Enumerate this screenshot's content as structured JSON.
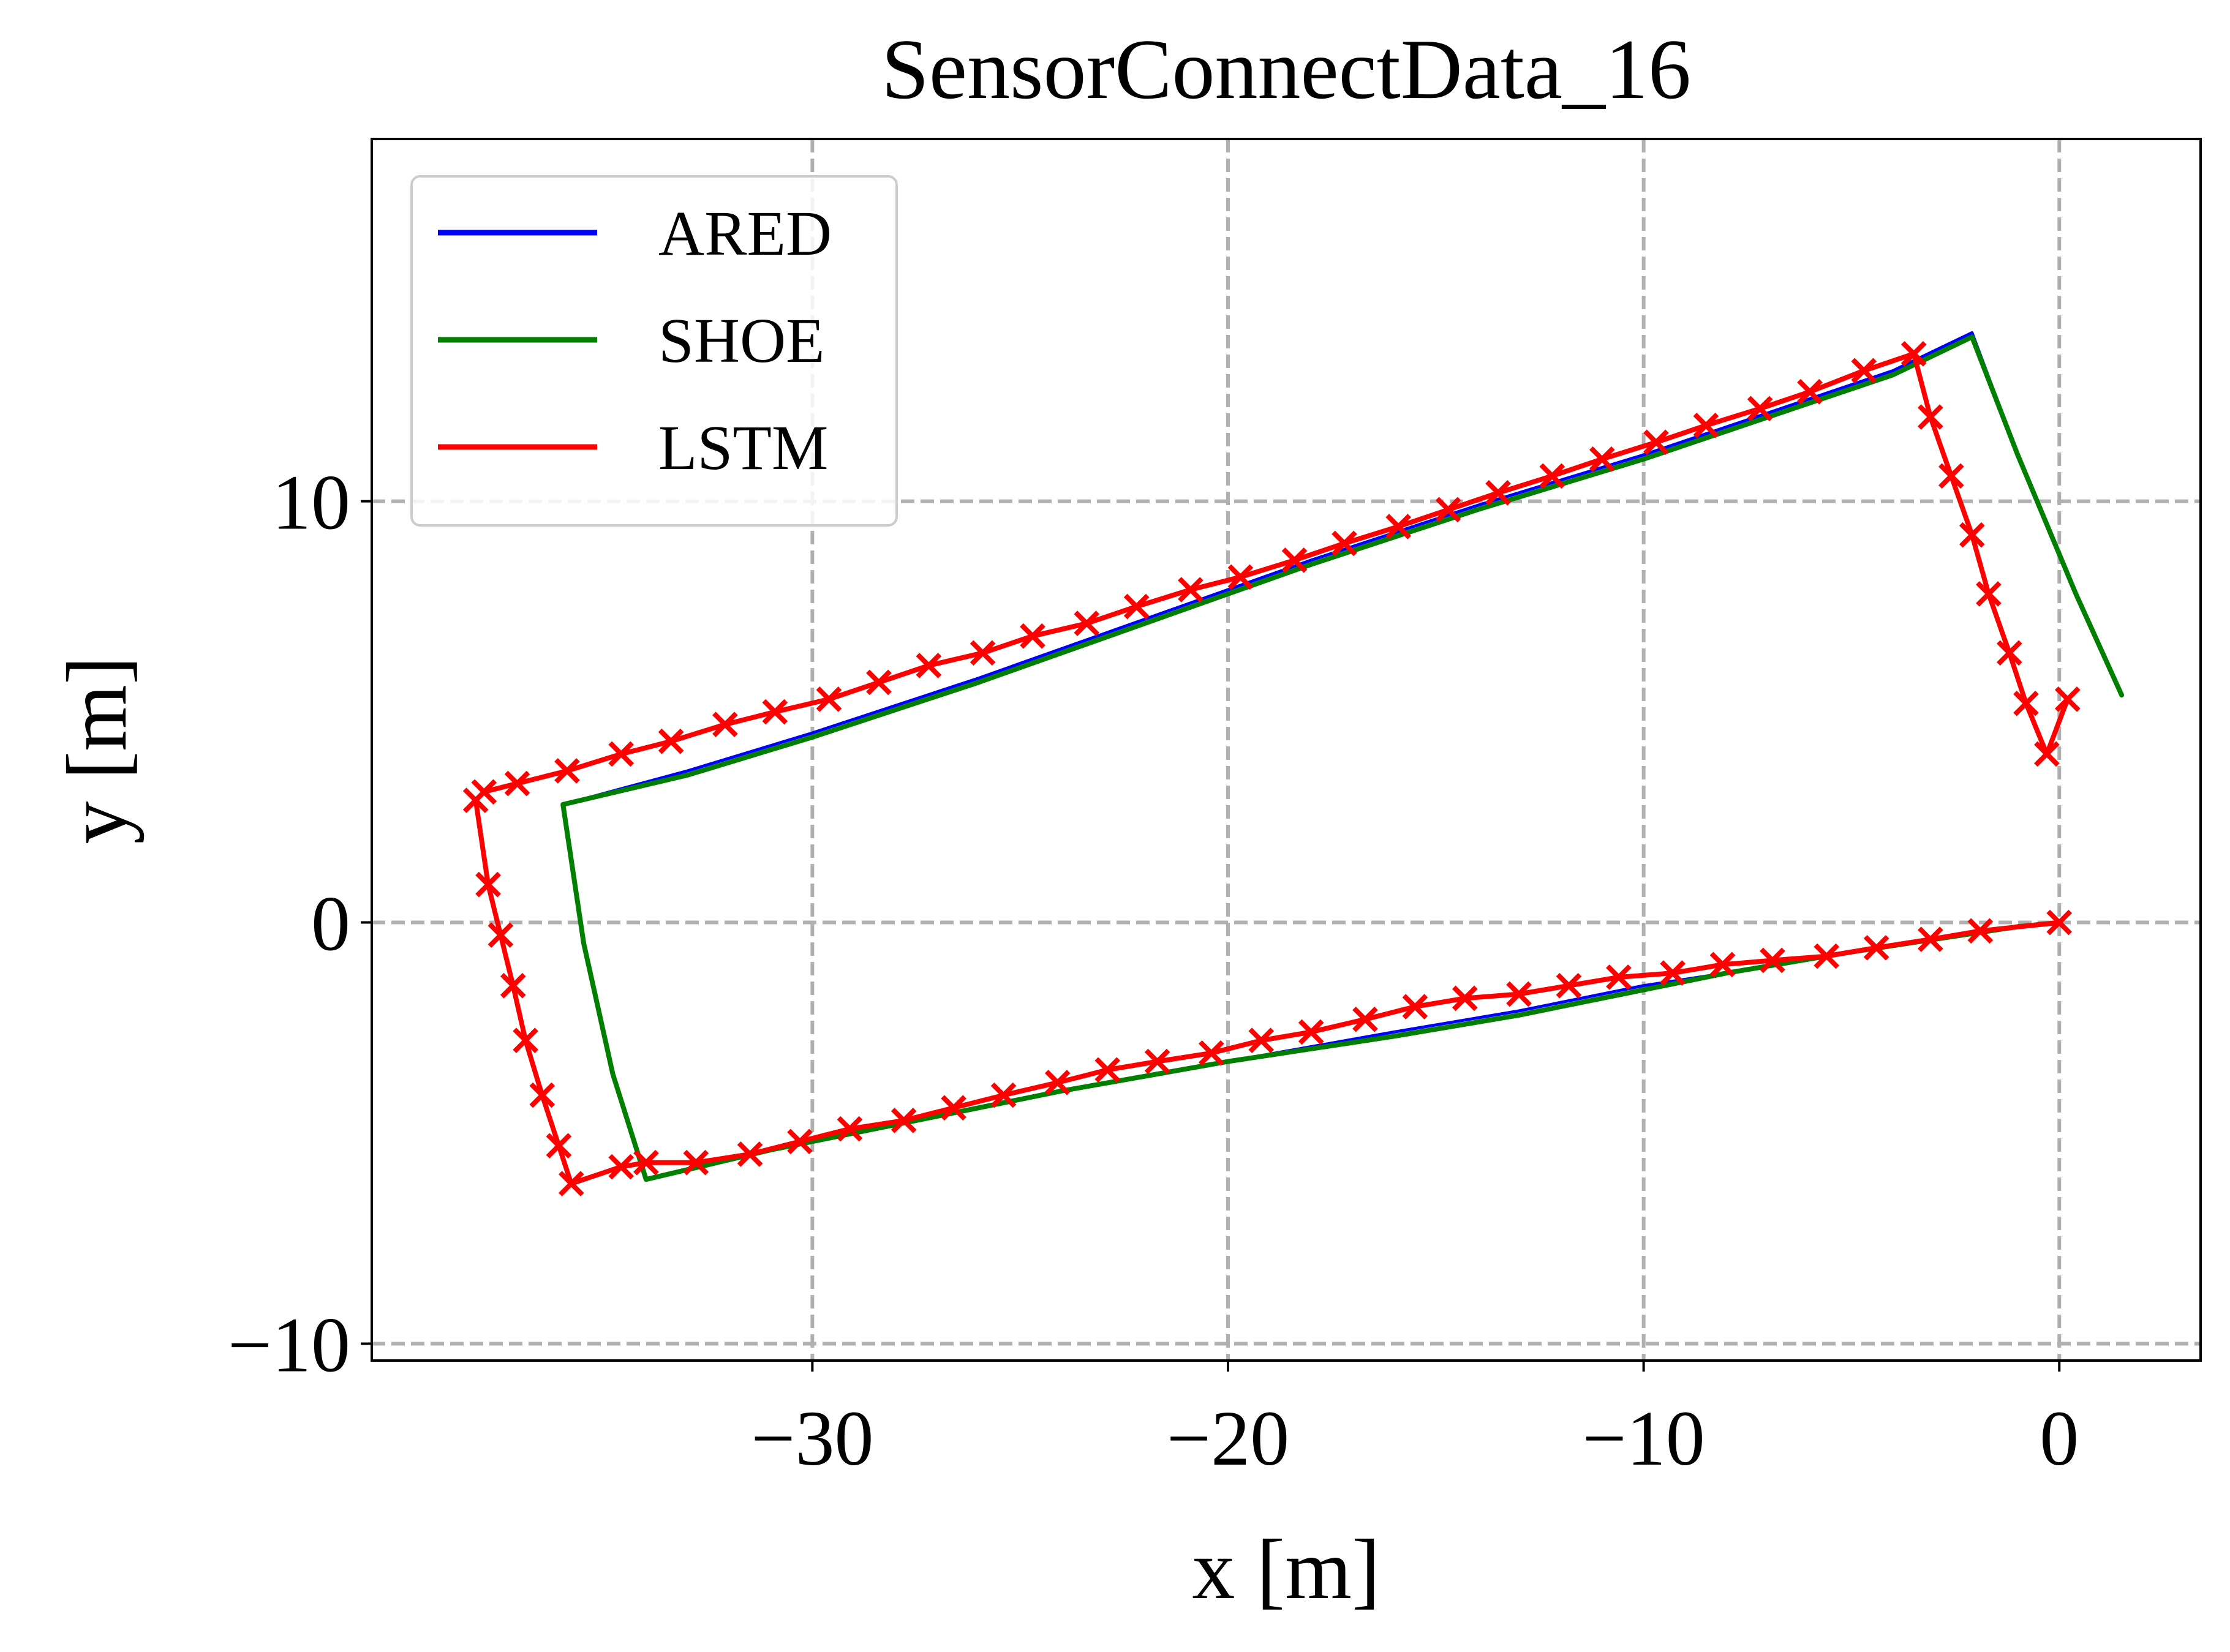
{
  "chart_data": {
    "type": "line",
    "title": "SensorConnectData_16",
    "xlabel": "x [m]",
    "ylabel": "y [m]",
    "xlim": [
      -40.6,
      3.4
    ],
    "ylim": [
      -10.4,
      18.6
    ],
    "xticks": [
      -30,
      -20,
      -10,
      0
    ],
    "xtick_labels": [
      "−30",
      "−20",
      "−10",
      "0"
    ],
    "yticks": [
      -10,
      0,
      10
    ],
    "ytick_labels": [
      "−10",
      "0",
      "10"
    ],
    "grid": true,
    "legend_position": "top-left",
    "series": [
      {
        "name": "ARED",
        "color": "#0000ff",
        "marker": "none",
        "x": [
          0,
          -1,
          -3,
          -5,
          -8,
          -10,
          -13,
          -16,
          -20,
          -24,
          -28,
          -31,
          -34,
          -34.8,
          -35.5,
          -36,
          -33,
          -30,
          -26,
          -22,
          -18,
          -14,
          -10,
          -7,
          -4,
          -2.1,
          -1,
          0.4,
          1.5
        ],
        "y": [
          0,
          -0.1,
          -0.4,
          -0.7,
          -1.2,
          -1.5,
          -2.1,
          -2.6,
          -3.3,
          -4.0,
          -4.8,
          -5.4,
          -6.1,
          -3.6,
          -0.5,
          2.8,
          3.6,
          4.5,
          5.8,
          7.2,
          8.6,
          9.9,
          11.1,
          12.1,
          13.1,
          14.0,
          11.1,
          7.8,
          5.4
        ]
      },
      {
        "name": "SHOE",
        "color": "#007f00",
        "marker": "none",
        "x": [
          0,
          -1,
          -3,
          -5,
          -8,
          -10,
          -13,
          -16,
          -20,
          -24,
          -28,
          -31,
          -34,
          -34.8,
          -35.5,
          -36,
          -33,
          -30,
          -26,
          -22,
          -18,
          -14,
          -10,
          -7,
          -4,
          -2.1,
          -1,
          0.4,
          1.5
        ],
        "y": [
          0,
          -0.1,
          -0.4,
          -0.7,
          -1.2,
          -1.6,
          -2.2,
          -2.7,
          -3.3,
          -4.0,
          -4.8,
          -5.4,
          -6.1,
          -3.6,
          -0.5,
          2.8,
          3.5,
          4.4,
          5.7,
          7.1,
          8.5,
          9.8,
          11.0,
          12.0,
          13.0,
          13.9,
          11.1,
          7.8,
          5.4
        ]
      },
      {
        "name": "LSTM",
        "color": "#ff0000",
        "marker": "x",
        "x": [
          0,
          -1.9,
          -3.1,
          -4.4,
          -5.6,
          -6.9,
          -8.1,
          -9.3,
          -10.6,
          -11.8,
          -13.0,
          -14.3,
          -15.5,
          -16.7,
          -18.0,
          -19.2,
          -20.4,
          -21.7,
          -22.9,
          -24.1,
          -25.4,
          -26.6,
          -27.8,
          -29.1,
          -30.3,
          -31.5,
          -32.8,
          -34.0,
          -34.6,
          -35.8,
          -36.1,
          -36.5,
          -36.9,
          -37.2,
          -37.5,
          -37.8,
          -38.1,
          -37.9,
          -37.1,
          -35.9,
          -34.6,
          -33.4,
          -32.1,
          -30.9,
          -29.6,
          -28.4,
          -27.2,
          -25.9,
          -24.7,
          -23.4,
          -22.2,
          -20.9,
          -19.7,
          -18.4,
          -17.2,
          -15.9,
          -14.7,
          -13.5,
          -12.2,
          -11.0,
          -9.7,
          -8.5,
          -7.2,
          -6.0,
          -4.7,
          -3.5,
          -3.1,
          -2.6,
          -2.1,
          -1.7,
          -1.2,
          -0.8,
          -0.3,
          0.2
        ],
        "y": [
          0,
          -0.2,
          -0.4,
          -0.6,
          -0.8,
          -0.9,
          -1.0,
          -1.2,
          -1.3,
          -1.5,
          -1.7,
          -1.8,
          -2.0,
          -2.3,
          -2.6,
          -2.8,
          -3.1,
          -3.3,
          -3.5,
          -3.8,
          -4.1,
          -4.4,
          -4.7,
          -4.9,
          -5.2,
          -5.5,
          -5.7,
          -5.7,
          -5.8,
          -6.2,
          -5.3,
          -4.1,
          -2.8,
          -1.5,
          -0.3,
          0.9,
          2.9,
          3.1,
          3.3,
          3.6,
          4.0,
          4.3,
          4.7,
          5.0,
          5.3,
          5.7,
          6.1,
          6.4,
          6.8,
          7.1,
          7.5,
          7.9,
          8.2,
          8.6,
          9.0,
          9.4,
          9.8,
          10.2,
          10.6,
          11.0,
          11.4,
          11.8,
          12.2,
          12.6,
          13.1,
          13.5,
          12.0,
          10.6,
          9.2,
          7.8,
          6.4,
          5.2,
          4.0,
          5.3
        ]
      }
    ]
  }
}
